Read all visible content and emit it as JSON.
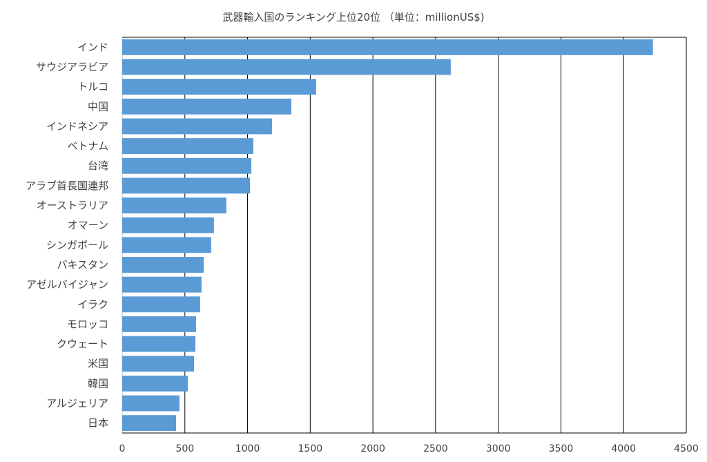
{
  "chart_data": {
    "type": "bar",
    "orientation": "horizontal",
    "title": "武器輸入国のランキング上位20位 （単位：millionUS$)",
    "xlabel": "",
    "ylabel": "",
    "xlim": [
      0,
      4500
    ],
    "xticks": [
      0,
      500,
      1000,
      1500,
      2000,
      2500,
      3000,
      3500,
      4000,
      4500
    ],
    "grid": "vertical",
    "bar_color": "#5B9BD5",
    "categories": [
      "インド",
      "サウジアラビア",
      "トルコ",
      "中国",
      "インドネシア",
      "ベトナム",
      "台湾",
      "アラブ首長国連邦",
      "オーストラリア",
      "オマーン",
      "シンガポール",
      "パキスタン",
      "アゼルバイジャン",
      "イラク",
      "モロッコ",
      "クウェート",
      "米国",
      "韓国",
      "アルジェリア",
      "日本"
    ],
    "values": [
      4234,
      2621,
      1547,
      1349,
      1195,
      1046,
      1030,
      1019,
      831,
      732,
      710,
      650,
      633,
      622,
      589,
      584,
      573,
      523,
      457,
      430
    ]
  }
}
